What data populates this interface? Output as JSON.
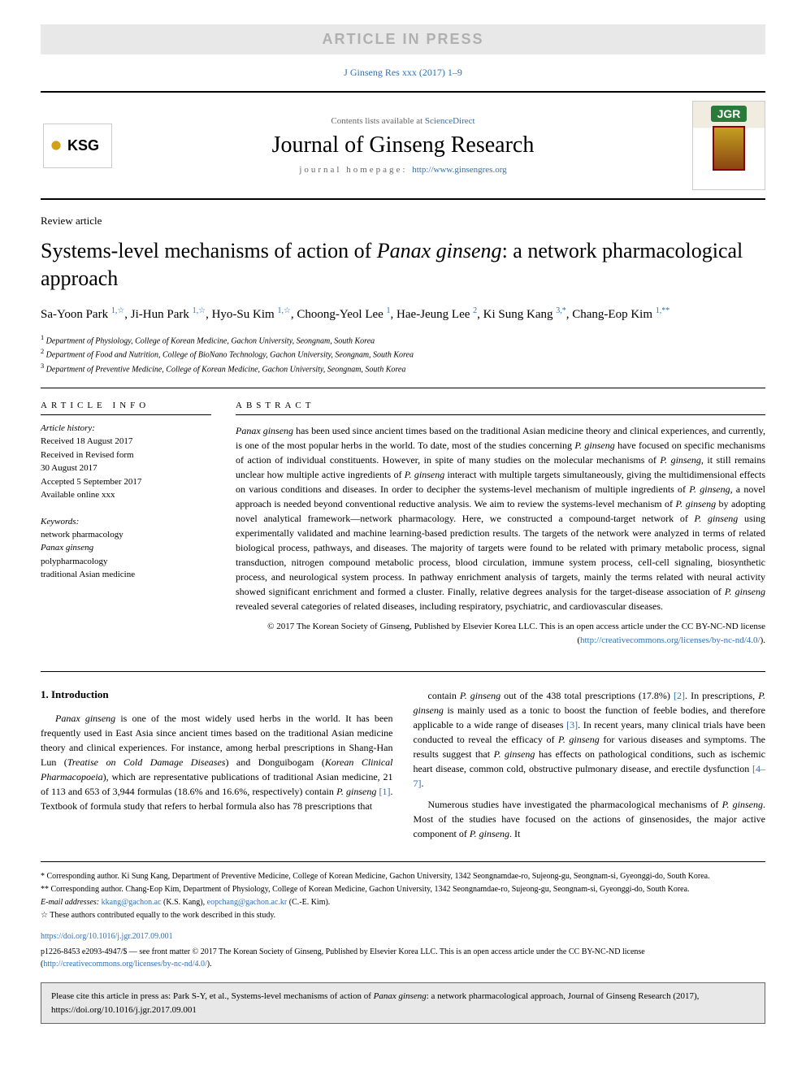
{
  "banner": {
    "text": "ARTICLE IN PRESS"
  },
  "citation_link": "J Ginseng Res xxx (2017) 1–9",
  "header": {
    "contents_text": "Contents lists available at ",
    "contents_link": "ScienceDirect",
    "journal_title": "Journal of Ginseng Research",
    "homepage_label": "journal homepage: ",
    "homepage_url": "http://www.ginsengres.org",
    "ksg_text": "KSG",
    "jgr_text": "JGR"
  },
  "article": {
    "type": "Review article",
    "title_pre": "Systems-level mechanisms of action of ",
    "title_em": "Panax ginseng",
    "title_post": ": a network pharmacological approach",
    "authors_html": "Sa-Yoon Park <sup>1,☆</sup>, Ji-Hun Park <sup>1,☆</sup>, Hyo-Su Kim <sup>1,☆</sup>, Choong-Yeol Lee <sup>1</sup>, Hae-Jeung Lee <sup>2</sup>, Ki Sung Kang <sup>3,*</sup>, Chang-Eop Kim <sup>1,**</sup>"
  },
  "affiliations": [
    {
      "num": "1",
      "text": "Department of Physiology, College of Korean Medicine, Gachon University, Seongnam, South Korea"
    },
    {
      "num": "2",
      "text": "Department of Food and Nutrition, College of BioNano Technology, Gachon University, Seongnam, South Korea"
    },
    {
      "num": "3",
      "text": "Department of Preventive Medicine, College of Korean Medicine, Gachon University, Seongnam, South Korea"
    }
  ],
  "article_info": {
    "heading": "ARTICLE INFO",
    "history_label": "Article history:",
    "history": "Received 18 August 2017\nReceived in Revised form\n30 August 2017\nAccepted 5 September 2017\nAvailable online xxx",
    "keywords_label": "Keywords:",
    "keywords": "network pharmacology\nPanax ginseng\npolypharmacology\ntraditional Asian medicine"
  },
  "abstract": {
    "heading": "ABSTRACT",
    "text": "Panax ginseng has been used since ancient times based on the traditional Asian medicine theory and clinical experiences, and currently, is one of the most popular herbs in the world. To date, most of the studies concerning P. ginseng have focused on specific mechanisms of action of individual constituents. However, in spite of many studies on the molecular mechanisms of P. ginseng, it still remains unclear how multiple active ingredients of P. ginseng interact with multiple targets simultaneously, giving the multidimensional effects on various conditions and diseases. In order to decipher the systems-level mechanism of multiple ingredients of P. ginseng, a novel approach is needed beyond conventional reductive analysis. We aim to review the systems-level mechanism of P. ginseng by adopting novel analytical framework—network pharmacology. Here, we constructed a compound-target network of P. ginseng using experimentally validated and machine learning-based prediction results. The targets of the network were analyzed in terms of related biological process, pathways, and diseases. The majority of targets were found to be related with primary metabolic process, signal transduction, nitrogen compound metabolic process, blood circulation, immune system process, cell-cell signaling, biosynthetic process, and neurological system process. In pathway enrichment analysis of targets, mainly the terms related with neural activity showed significant enrichment and formed a cluster. Finally, relative degrees analysis for the target-disease association of P. ginseng revealed several categories of related diseases, including respiratory, psychiatric, and cardiovascular diseases.",
    "copyright": "© 2017 The Korean Society of Ginseng, Published by Elsevier Korea LLC. This is an open access article under the CC BY-NC-ND license (",
    "copyright_link": "http://creativecommons.org/licenses/by-nc-nd/4.0/",
    "copyright_close": ")."
  },
  "intro": {
    "heading": "1. Introduction",
    "col1": "Panax ginseng is one of the most widely used herbs in the world. It has been frequently used in East Asia since ancient times based on the traditional Asian medicine theory and clinical experiences. For instance, among herbal prescriptions in Shang-Han Lun (Treatise on Cold Damage Diseases) and Donguibogam (Korean Clinical Pharmacopoeia), which are representative publications of traditional Asian medicine, 21 of 113 and 653 of 3,944 formulas (18.6% and 16.6%, respectively) contain P. ginseng [1]. Textbook of formula study that refers to herbal formula also has 78 prescriptions that",
    "col2": "contain P. ginseng out of the 438 total prescriptions (17.8%) [2]. In prescriptions, P. ginseng is mainly used as a tonic to boost the function of feeble bodies, and therefore applicable to a wide range of diseases [3]. In recent years, many clinical trials have been conducted to reveal the efficacy of P. ginseng for various diseases and symptoms. The results suggest that P. ginseng has effects on pathological conditions, such as ischemic heart disease, common cold, obstructive pulmonary disease, and erectile dysfunction [4–7].",
    "col2b": "Numerous studies have investigated the pharmacological mechanisms of P. ginseng. Most of the studies have focused on the actions of ginsenosides, the major active component of P. ginseng. It"
  },
  "footnotes": {
    "corr1": "* Corresponding author. Ki Sung Kang, Department of Preventive Medicine, College of Korean Medicine, Gachon University, 1342 Seongnamdae-ro, Sujeong-gu, Seongnam-si, Gyeonggi-do, South Korea.",
    "corr2": "** Corresponding author. Chang-Eop Kim, Department of Physiology, College of Korean Medicine, Gachon University, 1342 Seongnamdae-ro, Sujeong-gu, Seongnam-si, Gyeonggi-do, South Korea.",
    "email_label": "E-mail addresses: ",
    "email1": "kkang@gachon.ac",
    "email1_name": " (K.S. Kang), ",
    "email2": "eopchang@gachon.ac.kr",
    "email2_name": " (C.-E. Kim).",
    "equal": "☆ These authors contributed equally to the work described in this study.",
    "doi": "https://doi.org/10.1016/j.jgr.2017.09.001",
    "issn": "p1226-8453 e2093-4947/$ — see front matter © 2017 The Korean Society of Ginseng, Published by Elsevier Korea LLC. This is an open access article under the CC BY-NC-ND license (",
    "issn_link": "http://creativecommons.org/licenses/by-nc-nd/4.0/",
    "issn_close": ")."
  },
  "citebox": "Please cite this article in press as: Park S-Y, et al., Systems-level mechanisms of action of Panax ginseng: a network pharmacological approach, Journal of Ginseng Research (2017), https://doi.org/10.1016/j.jgr.2017.09.001",
  "colors": {
    "link": "#3070b0",
    "banner_bg": "#e8e8e8",
    "banner_text": "#b0b0b0",
    "jgr_green": "#2a7a3a"
  }
}
